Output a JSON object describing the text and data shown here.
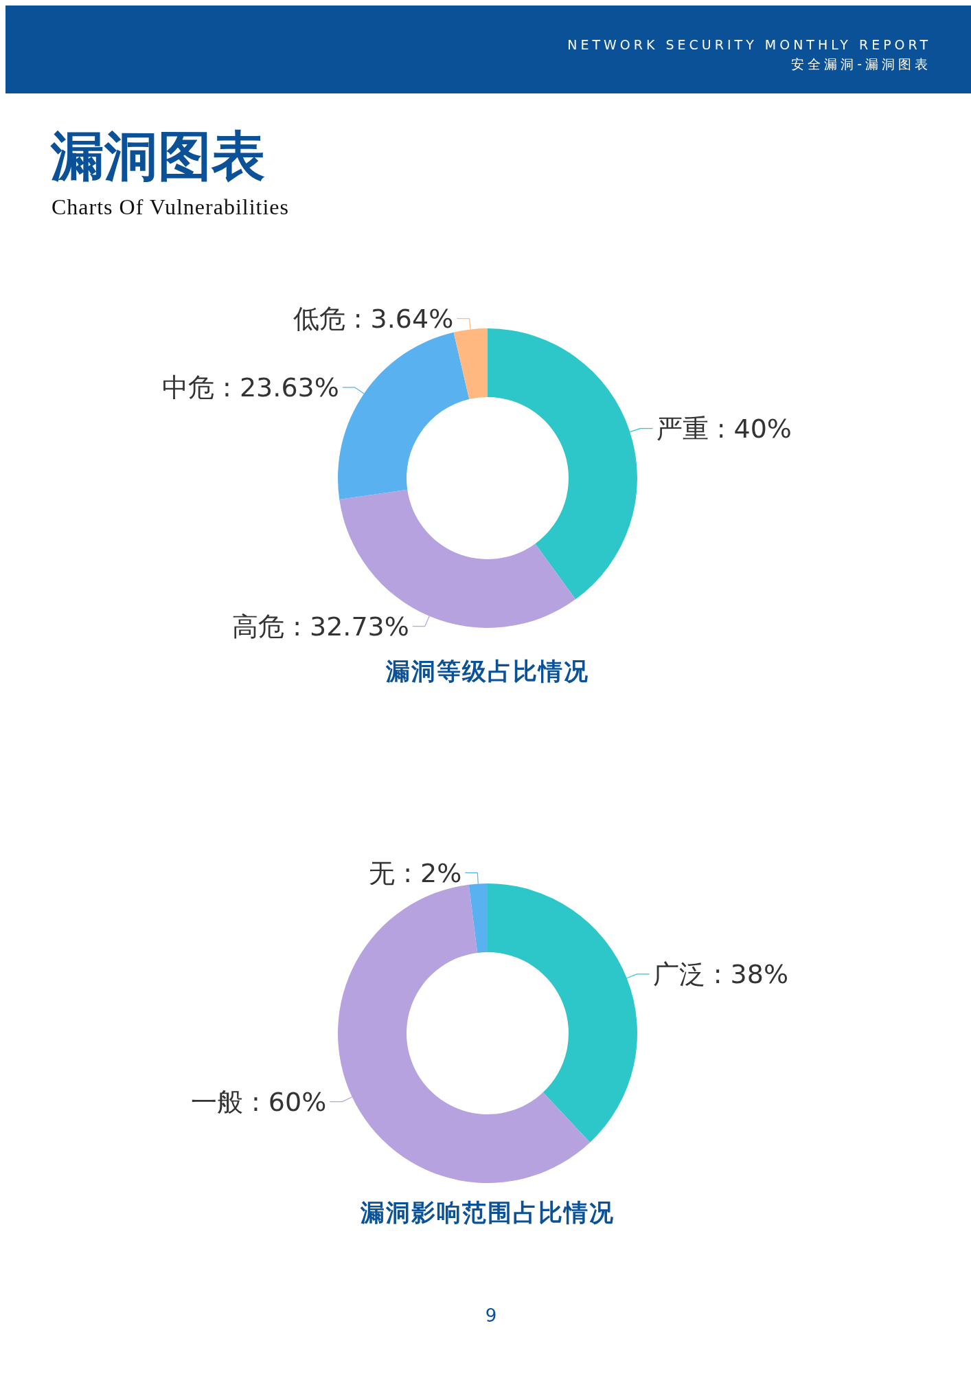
{
  "chart_data": [
    {
      "type": "other",
      "title": "漏洞图表",
      "subtitle": "Charts Of Vulnerabilities",
      "annotations": [
        "NETWORK SECURITY MONTHLY REPORT",
        "安全漏洞-漏洞图表",
        "9"
      ]
    },
    {
      "type": "donut",
      "title": "漏洞等级占比情况",
      "categories": [
        "严重",
        "高危",
        "中危",
        "低危"
      ],
      "values": [
        40,
        32.73,
        23.63,
        3.64
      ],
      "value_labels": [
        "40%",
        "32.73%",
        "23.63%",
        "3.64%"
      ],
      "colors": [
        "#2ec7c9",
        "#b6a2de",
        "#5ab1ef",
        "#ffb980"
      ]
    },
    {
      "type": "donut",
      "title": "漏洞影响范围占比情况",
      "categories": [
        "广泛",
        "一般",
        "无"
      ],
      "values": [
        38,
        60,
        2
      ],
      "value_labels": [
        "38%",
        "60%",
        "2%"
      ],
      "colors": [
        "#2ec7c9",
        "#b6a2de",
        "#5ab1ef"
      ]
    }
  ]
}
